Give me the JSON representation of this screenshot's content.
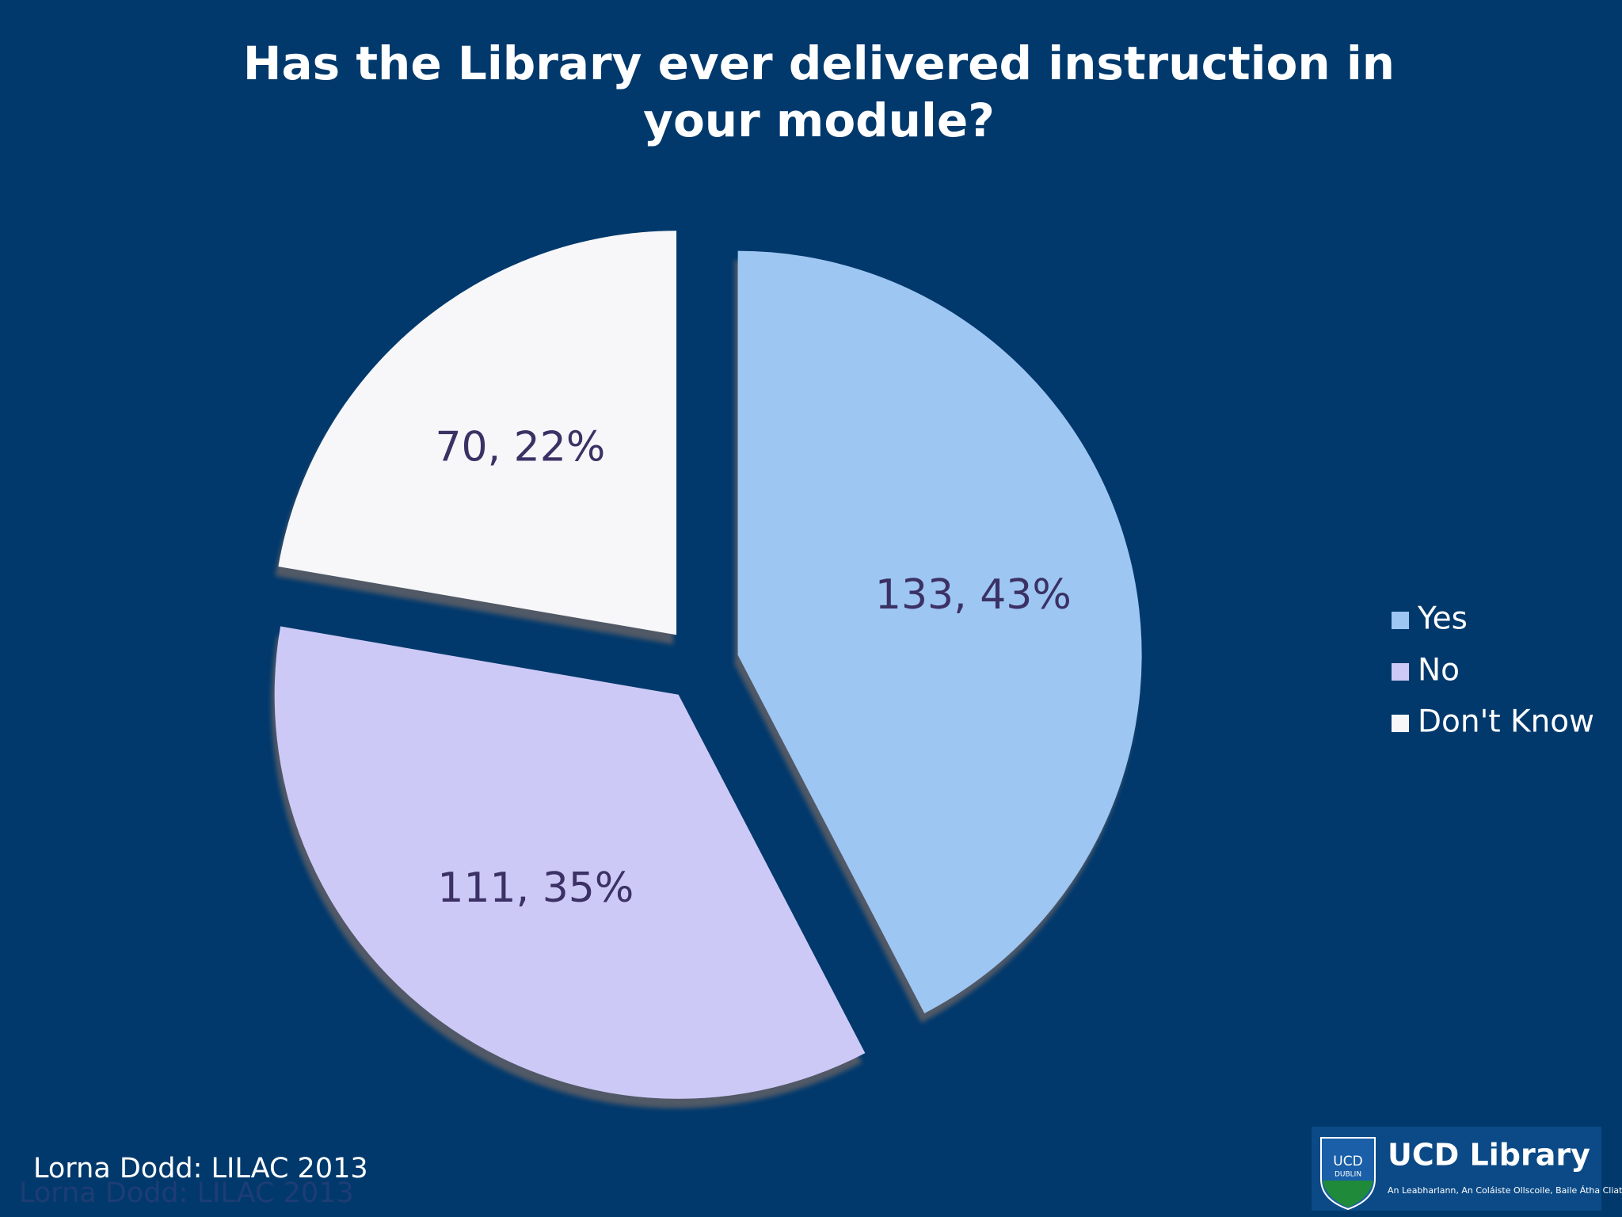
{
  "chart_data": {
    "type": "pie",
    "title": "Has the Library ever delivered instruction in your module?",
    "categories": [
      "Yes",
      "No",
      "Don't Know"
    ],
    "values": [
      133,
      111,
      70
    ],
    "value_labels": [
      "133, 43%",
      "111, 35%",
      "70, 22%"
    ],
    "colors": [
      "#9ec6f3",
      "#cdc9f6",
      "#f7f7fa"
    ],
    "legend": "right"
  },
  "footer": "Lorna Dodd: LILAC 2013",
  "logo": {
    "title": "UCD Library",
    "subtitle": "An Leabharlann, An Coláiste Ollscoile, Baile Átha Cliath",
    "crest_top": "UCD",
    "crest_bottom": "DUBLIN"
  }
}
